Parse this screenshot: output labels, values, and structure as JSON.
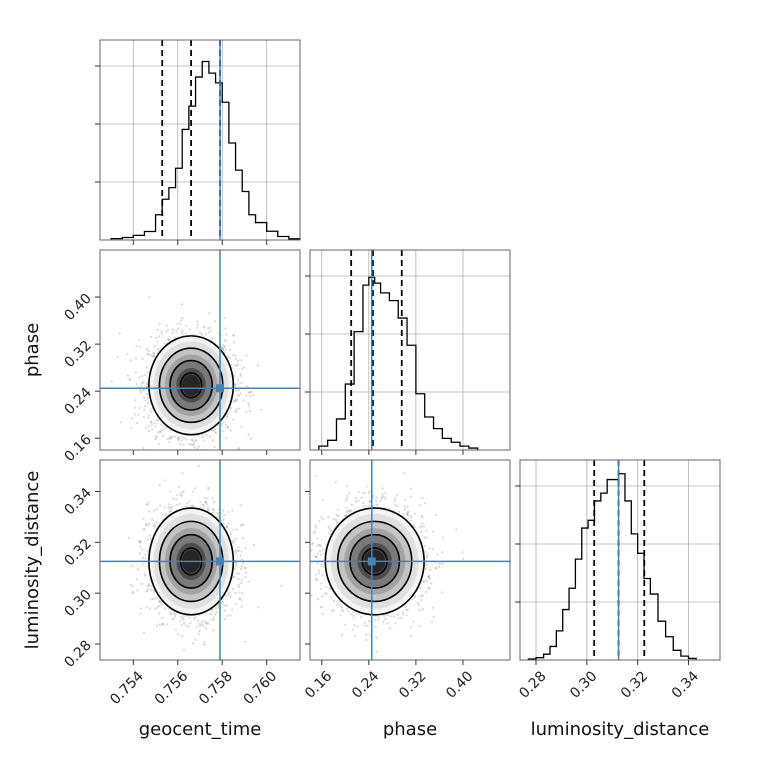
{
  "chart_data": {
    "type": "corner",
    "parameters": [
      "geocent_time",
      "phase",
      "luminosity_distance"
    ],
    "axis_labels": {
      "geocent_time": "geocent_time",
      "phase": "phase",
      "luminosity_distance": "luminosity_distance"
    },
    "ranges": {
      "geocent_time": [
        0.7525,
        0.7615
      ],
      "phase": [
        0.14,
        0.48
      ],
      "luminosity_distance": [
        0.2737,
        0.3524
      ]
    },
    "ticks": {
      "geocent_time": [
        "0.754",
        "0.756",
        "0.758",
        "0.760"
      ],
      "phase": [
        "0.16",
        "0.24",
        "0.32",
        "0.40"
      ],
      "luminosity_distance": [
        "0.28",
        "0.30",
        "0.32",
        "0.34"
      ]
    },
    "truths": {
      "geocent_time": 0.7579,
      "phase": 0.245,
      "luminosity_distance": 0.3125
    },
    "quantiles": {
      "geocent_time": [
        0.7553,
        0.7566,
        0.7579
      ],
      "phase": [
        0.21,
        0.247,
        0.296
      ],
      "luminosity_distance": [
        0.3029,
        0.3125,
        0.3226
      ]
    },
    "marginals": {
      "geocent_time": {
        "mean": 0.7566,
        "sd": 0.00095,
        "steps": [
          [
            0.753,
            0.007
          ],
          [
            0.7535,
            0.013
          ],
          [
            0.754,
            0.024
          ],
          [
            0.7545,
            0.044
          ],
          [
            0.755,
            0.13
          ],
          [
            0.7553,
            0.21
          ],
          [
            0.7556,
            0.27
          ],
          [
            0.7559,
            0.37
          ],
          [
            0.7562,
            0.57
          ],
          [
            0.7565,
            0.69
          ],
          [
            0.7568,
            0.84
          ],
          [
            0.7571,
            0.92
          ],
          [
            0.7574,
            0.86
          ],
          [
            0.7577,
            0.81
          ],
          [
            0.758,
            0.71
          ],
          [
            0.7583,
            0.5
          ],
          [
            0.7586,
            0.36
          ],
          [
            0.7589,
            0.25
          ],
          [
            0.7592,
            0.13
          ],
          [
            0.7595,
            0.09
          ],
          [
            0.76,
            0.045
          ],
          [
            0.7605,
            0.018
          ],
          [
            0.761,
            0.006
          ]
        ]
      },
      "phase": {
        "mean": 0.25,
        "sd": 0.042,
        "steps": [
          [
            0.155,
            0.02
          ],
          [
            0.17,
            0.05
          ],
          [
            0.185,
            0.16
          ],
          [
            0.2,
            0.34
          ],
          [
            0.215,
            0.61
          ],
          [
            0.23,
            0.85
          ],
          [
            0.24,
            0.89
          ],
          [
            0.25,
            0.86
          ],
          [
            0.26,
            0.81
          ],
          [
            0.275,
            0.77
          ],
          [
            0.29,
            0.68
          ],
          [
            0.305,
            0.54
          ],
          [
            0.32,
            0.29
          ],
          [
            0.335,
            0.17
          ],
          [
            0.35,
            0.11
          ],
          [
            0.365,
            0.06
          ],
          [
            0.38,
            0.04
          ],
          [
            0.395,
            0.02
          ],
          [
            0.41,
            0.01
          ]
        ]
      },
      "luminosity_distance": {
        "mean": 0.3125,
        "sd": 0.0105,
        "steps": [
          [
            0.277,
            0.005
          ],
          [
            0.28,
            0.012
          ],
          [
            0.283,
            0.03
          ],
          [
            0.2855,
            0.07
          ],
          [
            0.288,
            0.15
          ],
          [
            0.2905,
            0.26
          ],
          [
            0.293,
            0.37
          ],
          [
            0.2955,
            0.52
          ],
          [
            0.298,
            0.68
          ],
          [
            0.3005,
            0.72
          ],
          [
            0.303,
            0.82
          ],
          [
            0.3055,
            0.86
          ],
          [
            0.308,
            0.93
          ],
          [
            0.3105,
            0.93
          ],
          [
            0.3125,
            0.96
          ],
          [
            0.315,
            0.82
          ],
          [
            0.3175,
            0.65
          ],
          [
            0.32,
            0.55
          ],
          [
            0.3225,
            0.42
          ],
          [
            0.325,
            0.34
          ],
          [
            0.328,
            0.2
          ],
          [
            0.331,
            0.12
          ],
          [
            0.334,
            0.05
          ],
          [
            0.337,
            0.02
          ],
          [
            0.34,
            0.008
          ]
        ]
      }
    },
    "correlations": {
      "geocent_time|phase": 0.0,
      "geocent_time|luminosity_distance": 0.0,
      "phase|luminosity_distance": 0.0
    },
    "contour_levels_sigma": [
      0.5,
      1.0,
      1.5,
      2.0
    ],
    "grid": true,
    "colors": {
      "truth": "#4682b4",
      "histogram": "#000000",
      "quantile": "#000000",
      "grid": "#b0b0b0",
      "frame": "#666666",
      "samples": "#a9a9a9"
    }
  }
}
